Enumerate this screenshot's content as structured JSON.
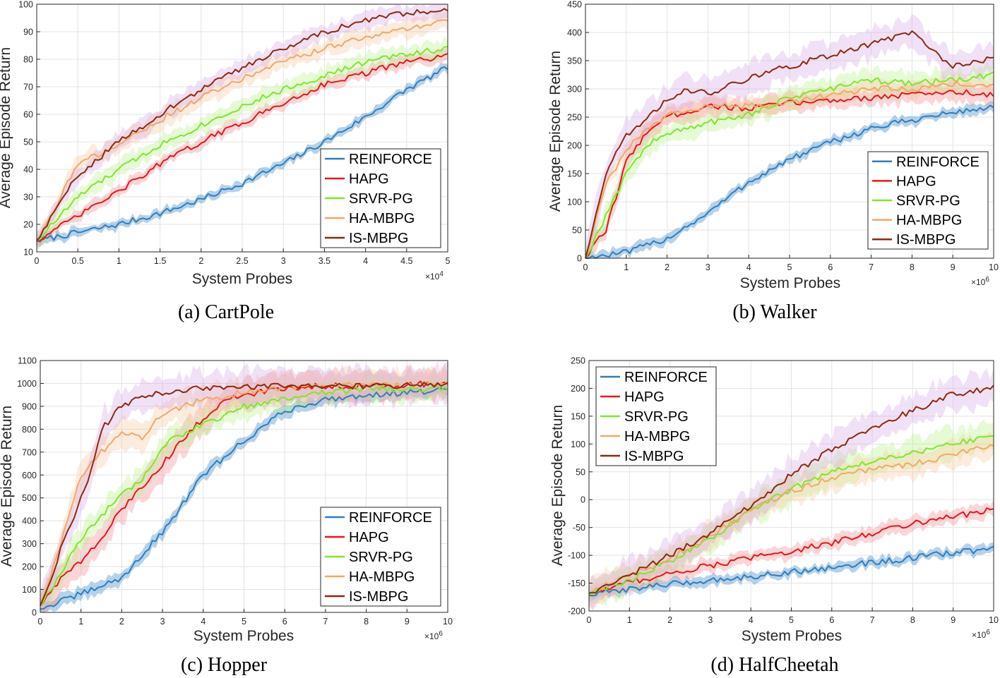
{
  "chart_data": [
    {
      "type": "line",
      "caption": "(a) CartPole",
      "xlabel": "System Probes",
      "ylabel": "Average Episode Return",
      "x_multiplier": "×10",
      "x_exponent": "4",
      "xlim": [
        0,
        5
      ],
      "ylim": [
        10,
        100
      ],
      "xticks": [
        0,
        0.5,
        1,
        1.5,
        2,
        2.5,
        3,
        3.5,
        4,
        4.5,
        5
      ],
      "yticks": [
        10,
        20,
        30,
        40,
        50,
        60,
        70,
        80,
        90,
        100
      ],
      "grid": true,
      "legend_position": "bottom-right",
      "series": [
        {
          "name": "REINFORCE",
          "color": "#2E7EBF",
          "band": 1.5,
          "x": [
            0,
            0.5,
            1,
            1.5,
            2,
            2.5,
            3,
            3.5,
            4,
            4.5,
            5
          ],
          "y": [
            14,
            17,
            20,
            24,
            29,
            35,
            42,
            50,
            59,
            69,
            77
          ]
        },
        {
          "name": "HAPG",
          "color": "#E8161A",
          "band": 2,
          "x": [
            0,
            0.5,
            1,
            1.5,
            2,
            2.5,
            3,
            3.5,
            4,
            4.5,
            5
          ],
          "y": [
            14,
            23,
            32,
            42,
            50,
            57,
            64,
            71,
            75,
            79,
            81
          ]
        },
        {
          "name": "SRVR-PG",
          "color": "#7FE62E",
          "band": 3,
          "x": [
            0,
            0.5,
            1,
            1.5,
            2,
            2.5,
            3,
            3.5,
            4,
            4.5,
            5
          ],
          "y": [
            14,
            30,
            40,
            49,
            56,
            63,
            69,
            74,
            79,
            82,
            84
          ]
        },
        {
          "name": "HA-MBPG",
          "color": "#F2A868",
          "band": 3,
          "x": [
            0,
            0.5,
            1,
            1.5,
            2,
            2.5,
            3,
            3.5,
            4,
            4.5,
            5
          ],
          "y": [
            14,
            42,
            49,
            58,
            66,
            73,
            79,
            84,
            88,
            91,
            94
          ]
        },
        {
          "name": "IS-MBPG",
          "color": "#8C2A0E",
          "band": 3,
          "x": [
            0,
            0.5,
            1,
            1.5,
            2,
            2.5,
            3,
            3.5,
            4,
            4.5,
            5
          ],
          "y": [
            14,
            38,
            50,
            60,
            69,
            77,
            84,
            90,
            94,
            97,
            98
          ]
        }
      ]
    },
    {
      "type": "line",
      "caption": "(b) Walker",
      "xlabel": "System Probes",
      "ylabel": "Average Episode Return",
      "x_multiplier": "×10",
      "x_exponent": "6",
      "xlim": [
        0,
        10
      ],
      "ylim": [
        0,
        450
      ],
      "xticks": [
        0,
        1,
        2,
        3,
        4,
        5,
        6,
        7,
        8,
        9,
        10
      ],
      "yticks": [
        0,
        50,
        100,
        150,
        200,
        250,
        300,
        350,
        400,
        450
      ],
      "grid": true,
      "legend_position": "bottom-right",
      "series": [
        {
          "name": "REINFORCE",
          "color": "#2E7EBF",
          "band": 8,
          "x": [
            0,
            1,
            2,
            3,
            4,
            5,
            6,
            7,
            8,
            9,
            10
          ],
          "y": [
            0,
            10,
            35,
            80,
            135,
            175,
            205,
            230,
            245,
            258,
            268
          ]
        },
        {
          "name": "HAPG",
          "color": "#E8161A",
          "band": 15,
          "x": [
            0,
            0.5,
            1,
            1.5,
            2,
            3,
            4,
            5,
            6,
            7,
            8,
            9,
            10
          ],
          "y": [
            0,
            50,
            170,
            225,
            250,
            270,
            265,
            275,
            280,
            285,
            290,
            295,
            290
          ]
        },
        {
          "name": "SRVR-PG",
          "color": "#7FE62E",
          "band": 18,
          "x": [
            0,
            0.5,
            1,
            1.5,
            2,
            3,
            4,
            5,
            6,
            7,
            8,
            9,
            10
          ],
          "y": [
            0,
            75,
            150,
            200,
            220,
            240,
            255,
            285,
            300,
            315,
            310,
            315,
            325
          ]
        },
        {
          "name": "HA-MBPG",
          "color": "#F2A868",
          "band": 15,
          "x": [
            0,
            0.5,
            1,
            1.5,
            2,
            3,
            4,
            5,
            6,
            7,
            8,
            9,
            10
          ],
          "y": [
            0,
            130,
            190,
            230,
            255,
            270,
            270,
            275,
            290,
            300,
            300,
            310,
            305
          ]
        },
        {
          "name": "IS-MBPG",
          "color": "#8C2A0E",
          "band": 25,
          "x": [
            0,
            0.5,
            1,
            1.5,
            2,
            2.5,
            3,
            4,
            5,
            6,
            7,
            8,
            9,
            10
          ],
          "y": [
            0,
            150,
            220,
            245,
            280,
            300,
            290,
            320,
            340,
            360,
            380,
            400,
            340,
            355
          ]
        }
      ]
    },
    {
      "type": "line",
      "caption": "(c) Hopper",
      "xlabel": "System Probes",
      "ylabel": "Average Episode Return",
      "x_multiplier": "×10",
      "x_exponent": "6",
      "xlim": [
        0,
        10
      ],
      "ylim": [
        0,
        1100
      ],
      "xticks": [
        0,
        1,
        2,
        3,
        4,
        5,
        6,
        7,
        8,
        9,
        10
      ],
      "yticks": [
        0,
        100,
        200,
        300,
        400,
        500,
        600,
        700,
        800,
        900,
        1000,
        1100
      ],
      "grid": true,
      "legend_position": "bottom-right",
      "series": [
        {
          "name": "REINFORCE",
          "color": "#2E7EBF",
          "band": 25,
          "x": [
            0,
            1,
            2,
            3,
            4,
            5,
            6,
            7,
            8,
            9,
            10
          ],
          "y": [
            15,
            80,
            150,
            350,
            600,
            750,
            880,
            930,
            950,
            960,
            970
          ]
        },
        {
          "name": "HAPG",
          "color": "#E8161A",
          "band": 60,
          "x": [
            0,
            0.5,
            1,
            1.5,
            2,
            2.5,
            3,
            3.5,
            4,
            4.5,
            5,
            6,
            7,
            8,
            9,
            10
          ],
          "y": [
            30,
            150,
            220,
            320,
            450,
            550,
            650,
            750,
            850,
            920,
            950,
            980,
            990,
            990,
            995,
            1000
          ]
        },
        {
          "name": "SRVR-PG",
          "color": "#7FE62E",
          "band": 50,
          "x": [
            0,
            0.5,
            1,
            1.5,
            2,
            2.5,
            3,
            3.5,
            4,
            4.5,
            5,
            6,
            7,
            8,
            9,
            10
          ],
          "y": [
            30,
            170,
            320,
            420,
            520,
            580,
            730,
            780,
            820,
            850,
            900,
            930,
            960,
            975,
            975,
            980
          ]
        },
        {
          "name": "HA-MBPG",
          "color": "#F2A868",
          "band": 60,
          "x": [
            0,
            0.5,
            1,
            1.5,
            2,
            2.5,
            3,
            4,
            5,
            6,
            7,
            8,
            9,
            10
          ],
          "y": [
            30,
            300,
            600,
            700,
            790,
            760,
            870,
            930,
            960,
            980,
            990,
            990,
            995,
            995
          ]
        },
        {
          "name": "IS-MBPG",
          "color": "#8C2A0E",
          "band": 70,
          "x": [
            0,
            0.3,
            0.6,
            0.9,
            1.2,
            1.5,
            2,
            2.5,
            3,
            4,
            5,
            6,
            7,
            8,
            9,
            10
          ],
          "y": [
            30,
            170,
            330,
            450,
            580,
            800,
            900,
            950,
            960,
            980,
            985,
            990,
            985,
            990,
            990,
            995
          ]
        }
      ]
    },
    {
      "type": "line",
      "caption": "(d) HalfCheetah",
      "xlabel": "System Probes",
      "ylabel": "Average Episode Return",
      "x_multiplier": "×10",
      "x_exponent": "6",
      "xlim": [
        0,
        10
      ],
      "ylim": [
        -200,
        250
      ],
      "xticks": [
        0,
        1,
        2,
        3,
        4,
        5,
        6,
        7,
        8,
        9,
        10
      ],
      "yticks": [
        -200,
        -150,
        -100,
        -50,
        0,
        50,
        100,
        150,
        200,
        250
      ],
      "grid": true,
      "legend_position": "top-left",
      "series": [
        {
          "name": "REINFORCE",
          "color": "#2E7EBF",
          "band": 8,
          "x": [
            0,
            1,
            2,
            3,
            4,
            5,
            6,
            7,
            8,
            9,
            10
          ],
          "y": [
            -172,
            -160,
            -152,
            -145,
            -138,
            -130,
            -122,
            -113,
            -105,
            -95,
            -88
          ]
        },
        {
          "name": "HAPG",
          "color": "#E8161A",
          "band": 12,
          "x": [
            0,
            1,
            2,
            3,
            4,
            5,
            6,
            7,
            8,
            9,
            10
          ],
          "y": [
            -168,
            -148,
            -133,
            -118,
            -105,
            -92,
            -78,
            -60,
            -42,
            -30,
            -18
          ]
        },
        {
          "name": "SRVR-PG",
          "color": "#7FE62E",
          "band": 25,
          "x": [
            0,
            1,
            2,
            3,
            4,
            5,
            6,
            7,
            8,
            9,
            10
          ],
          "y": [
            -170,
            -145,
            -110,
            -70,
            -20,
            20,
            50,
            70,
            85,
            100,
            115
          ]
        },
        {
          "name": "HA-MBPG",
          "color": "#F2A868",
          "band": 22,
          "x": [
            0,
            1,
            2,
            3,
            4,
            5,
            6,
            7,
            8,
            9,
            10
          ],
          "y": [
            -168,
            -138,
            -105,
            -65,
            -20,
            15,
            40,
            55,
            65,
            80,
            100
          ]
        },
        {
          "name": "IS-MBPG",
          "color": "#8C2A0E",
          "band": 28,
          "x": [
            0,
            1,
            2,
            3,
            4,
            5,
            6,
            7,
            8,
            9,
            10
          ],
          "y": [
            -168,
            -135,
            -100,
            -60,
            -10,
            45,
            90,
            130,
            160,
            190,
            200
          ]
        }
      ]
    }
  ],
  "band_colors": {
    "REINFORCE": "#2E7EBF",
    "HAPG": "#F08A8C",
    "SRVR-PG": "#B8F28A",
    "HA-MBPG": "#F7C9A0",
    "IS-MBPG": "#D7A8E6"
  }
}
